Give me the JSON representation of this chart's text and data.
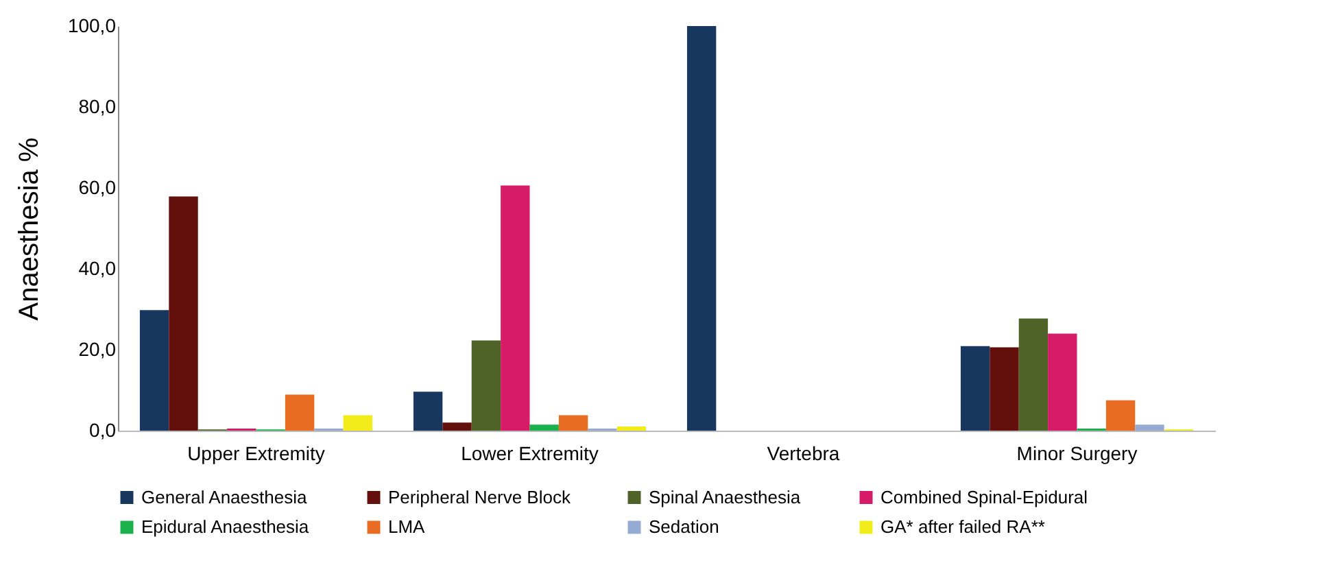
{
  "chart_data": {
    "type": "bar",
    "ylabel": "Anaesthesia %",
    "categories": [
      "Upper Extremity",
      "Lower Extremity",
      "Vertebra",
      "Minor Surgery"
    ],
    "series": [
      {
        "name": "General Anaesthesia",
        "color": "#17375e",
        "values": [
          29.8,
          9.6,
          100,
          20.9
        ]
      },
      {
        "name": "Peripheral Nerve Block",
        "color": "#630f0c",
        "values": [
          57.9,
          2.0,
          0,
          20.6
        ]
      },
      {
        "name": "Spinal Anaesthesia",
        "color": "#4f6228",
        "values": [
          0.3,
          22.3,
          0,
          27.7
        ]
      },
      {
        "name": "Combined Spinal-Epidural",
        "color": "#d61c68",
        "values": [
          0.5,
          60.6,
          0,
          24.0
        ]
      },
      {
        "name": "Epidural Anaesthesia",
        "color": "#1ab04b",
        "values": [
          0.3,
          1.5,
          0,
          0.5
        ]
      },
      {
        "name": "LMA",
        "color": "#e86c22",
        "values": [
          8.9,
          3.8,
          0,
          7.5
        ]
      },
      {
        "name": "Sedation",
        "color": "#95abd4",
        "values": [
          0.5,
          0.5,
          0,
          1.5
        ]
      },
      {
        "name": "GA* after failed RA**",
        "color": "#f2ec1b",
        "values": [
          3.8,
          1.0,
          0,
          0.3
        ]
      }
    ],
    "ylim": [
      0,
      100
    ],
    "yticks": [
      {
        "value": 0,
        "label": "0,0"
      },
      {
        "value": 20,
        "label": "20,0"
      },
      {
        "value": 40,
        "label": "40,0"
      },
      {
        "value": 60,
        "label": "60,0"
      },
      {
        "value": 80,
        "label": "80,0"
      },
      {
        "value": 100,
        "label": "100,0"
      }
    ],
    "legend": "bottom",
    "grid": false
  }
}
